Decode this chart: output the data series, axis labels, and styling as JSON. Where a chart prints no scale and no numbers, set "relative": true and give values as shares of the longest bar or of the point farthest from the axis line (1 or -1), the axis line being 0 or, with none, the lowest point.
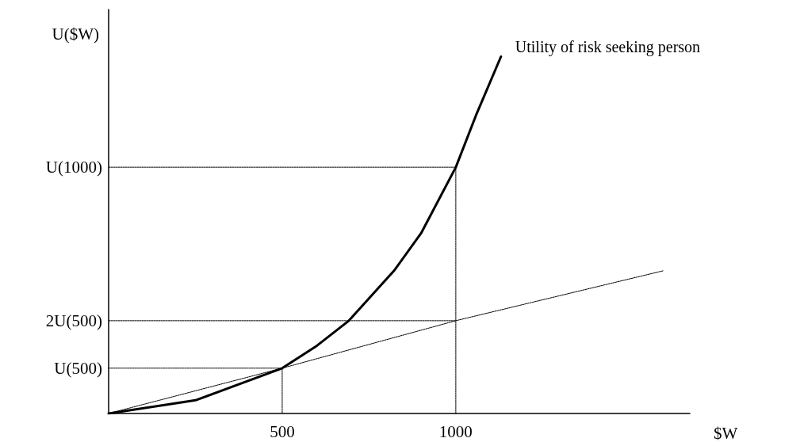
{
  "chart_data": {
    "type": "line",
    "relative": true,
    "xlabel": "$W",
    "ylabel": "U($W)",
    "xlim": [
      0,
      1674
    ],
    "xticks": [
      500,
      1000
    ],
    "grid": false,
    "legend": false,
    "marker": "none",
    "series": [
      {
        "name": "Utility of risk seeking person",
        "color": "#000000",
        "line_style": "solid",
        "x": [
          0,
          250,
          500,
          600,
          692,
          822,
          900,
          1000,
          1060,
          1130
        ],
        "values": [
          0,
          0.037,
          0.127,
          0.19,
          0.26,
          0.4,
          0.505,
          0.69,
          0.84,
          1
        ]
      },
      {
        "color": "#000000",
        "line_style": "dotted",
        "x": [
          0,
          500,
          1000,
          1598
        ],
        "values": [
          0,
          0.127,
          0.26,
          0.4
        ]
      },
      {
        "name": "U(500)",
        "color": "#000000",
        "line_style": "dotted",
        "x": [
          0,
          500,
          500
        ],
        "values": [
          0.127,
          0.127,
          0
        ]
      },
      {
        "name": "2U(500)",
        "color": "#000000",
        "line_style": "dotted",
        "x": [
          0,
          1000
        ],
        "values": [
          0.26,
          0.26
        ]
      },
      {
        "name": "U(1000)",
        "color": "#000000",
        "line_style": "dotted",
        "x": [
          0,
          1000,
          1000
        ],
        "values": [
          0.69,
          0.69,
          0
        ]
      }
    ]
  }
}
